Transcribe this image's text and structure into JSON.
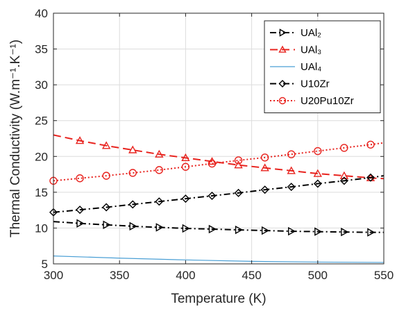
{
  "chart_data": {
    "type": "line",
    "xlabel": "Temperature (K)",
    "ylabel": "Thermal Conductivity (W.m⁻¹.K⁻¹)",
    "xlim": [
      300,
      550
    ],
    "ylim": [
      5,
      40
    ],
    "xticks": [
      300,
      350,
      400,
      450,
      500,
      550
    ],
    "yticks": [
      5,
      10,
      15,
      20,
      25,
      30,
      35,
      40
    ],
    "grid": true,
    "legend_position": "top-right",
    "series": [
      {
        "name": "UAl₂",
        "color": "#000000",
        "line_style": "dash-dot",
        "marker": "triangle-right",
        "x": [
          300,
          320,
          340,
          360,
          380,
          400,
          420,
          440,
          460,
          480,
          500,
          520,
          540,
          550
        ],
        "y": [
          10.9,
          10.65,
          10.45,
          10.25,
          10.1,
          9.95,
          9.85,
          9.75,
          9.65,
          9.55,
          9.5,
          9.45,
          9.4,
          9.4
        ],
        "marker_x": [
          320,
          340,
          360,
          380,
          400,
          420,
          440,
          460,
          480,
          500,
          520,
          540
        ]
      },
      {
        "name": "UAl₃",
        "color": "#e8231e",
        "line_style": "dashed",
        "marker": "triangle-up",
        "x": [
          300,
          320,
          340,
          360,
          380,
          400,
          420,
          440,
          460,
          480,
          500,
          520,
          540,
          550
        ],
        "y": [
          23.0,
          22.2,
          21.5,
          20.9,
          20.3,
          19.8,
          19.3,
          18.8,
          18.4,
          18.0,
          17.6,
          17.3,
          17.0,
          16.9
        ],
        "marker_x": [
          320,
          340,
          360,
          380,
          400,
          420,
          440,
          460,
          480,
          500,
          520,
          540
        ]
      },
      {
        "name": "UAl₄",
        "color": "#4a9fd5",
        "line_style": "solid",
        "marker": "none",
        "x": [
          300,
          350,
          400,
          450,
          500,
          550
        ],
        "y": [
          6.1,
          5.8,
          5.55,
          5.35,
          5.25,
          5.2
        ],
        "marker_x": []
      },
      {
        "name": "U10Zr",
        "color": "#000000",
        "line_style": "dash-dot",
        "marker": "diamond",
        "x": [
          300,
          320,
          340,
          360,
          380,
          400,
          420,
          440,
          460,
          480,
          500,
          520,
          540,
          550
        ],
        "y": [
          12.2,
          12.55,
          12.9,
          13.3,
          13.7,
          14.1,
          14.5,
          14.9,
          15.35,
          15.75,
          16.2,
          16.6,
          17.05,
          17.3
        ],
        "marker_x": [
          300,
          320,
          340,
          360,
          380,
          400,
          420,
          440,
          460,
          480,
          500,
          520,
          540
        ]
      },
      {
        "name": "U20Pu10Zr",
        "color": "#e8231e",
        "line_style": "dotted",
        "marker": "circle",
        "x": [
          300,
          320,
          340,
          360,
          380,
          400,
          420,
          440,
          460,
          480,
          500,
          520,
          540,
          550
        ],
        "y": [
          16.6,
          16.95,
          17.3,
          17.7,
          18.1,
          18.55,
          19.0,
          19.45,
          19.85,
          20.3,
          20.75,
          21.2,
          21.65,
          21.9
        ],
        "marker_x": [
          300,
          320,
          340,
          360,
          380,
          400,
          420,
          440,
          460,
          480,
          500,
          520,
          540
        ]
      }
    ]
  }
}
